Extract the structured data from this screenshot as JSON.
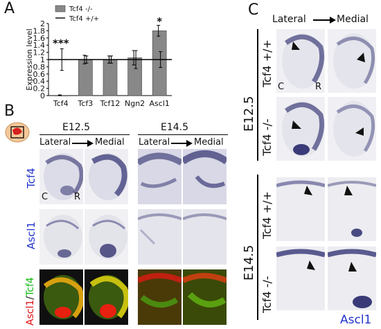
{
  "panel_letters": {
    "a": "A",
    "b": "B",
    "c": "C"
  },
  "chart_data": {
    "type": "bar",
    "categories": [
      "Tcf4",
      "Tcf3",
      "Tcf12",
      "Ngn2",
      "Ascl1"
    ],
    "series": [
      {
        "name": "Tcf4 -/-",
        "values": [
          0.0,
          1.0,
          1.0,
          1.05,
          1.8
        ],
        "errors": [
          0.02,
          0.12,
          0.1,
          0.2,
          0.15
        ]
      },
      {
        "name": "Tcf4 +/+",
        "values": [
          1.0,
          1.0,
          1.0,
          1.0,
          1.0
        ],
        "errors": [
          0.3,
          0.1,
          0.1,
          0.25,
          0.22
        ]
      }
    ],
    "ylabel": "Expression level",
    "yticks": [
      "0",
      "0.2",
      "0.4",
      "0.6",
      "0.8",
      "1",
      "1.2",
      "1.4",
      "1.6",
      "1.8",
      "2"
    ],
    "ylim": [
      0,
      2
    ],
    "annotations": {
      "tcf4": "***",
      "ascl1": "*"
    },
    "legend_position": "top-left",
    "colors": {
      "bar": "#888888",
      "line": "#000000"
    }
  },
  "panel_b": {
    "col_e125": "E12.5",
    "col_e145": "E14.5",
    "lateral": "Lateral",
    "medial": "Medial",
    "row_tcf4": "Tcf4",
    "row_ascl1": "Ascl1",
    "row_merge_ascl1": "Ascl1",
    "row_merge_sep": "/",
    "row_merge_tcf4": "Tcf4",
    "orient_c": "C",
    "orient_r": "R"
  },
  "panel_c": {
    "lateral": "Lateral",
    "medial": "Medial",
    "stage_e125": "E12.5",
    "stage_e145": "E14.5",
    "geno_wt": "Tcf4 +/+",
    "geno_ko": "Tcf4 -/-",
    "orient_c": "C",
    "orient_r": "R",
    "stain": "Ascl1"
  }
}
